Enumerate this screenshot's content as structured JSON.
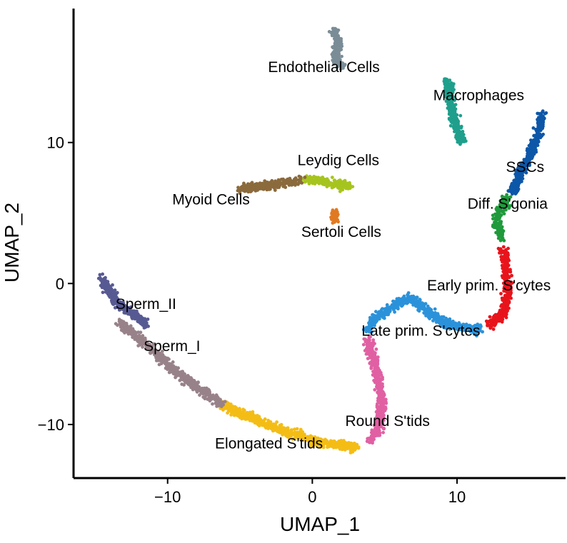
{
  "chart_data": {
    "type": "scatter",
    "xlabel": "UMAP_1",
    "ylabel": "UMAP_2",
    "xlim": [
      -16.5,
      17.5
    ],
    "ylim": [
      -13.8,
      19.5
    ],
    "xticks": [
      -10,
      0,
      10
    ],
    "yticks": [
      -10,
      0,
      10
    ],
    "xtick_labels": [
      "−10",
      "0",
      "10"
    ],
    "ytick_labels": [
      "−10",
      "0",
      "10"
    ],
    "grid": false,
    "legend": "none",
    "series": [
      {
        "name": "Endothelial Cells",
        "color": "#7a8d97",
        "path": [
          [
            1.5,
            18.0
          ],
          [
            1.8,
            17.0
          ],
          [
            1.6,
            16.0
          ],
          [
            2.0,
            15.5
          ]
        ],
        "label_pos": [
          0.8,
          15.0
        ]
      },
      {
        "name": "Macrophages",
        "color": "#1f9f8c",
        "path": [
          [
            9.3,
            14.5
          ],
          [
            9.6,
            12.5
          ],
          [
            10.0,
            11.0
          ],
          [
            10.4,
            10.0
          ]
        ],
        "label_pos": [
          11.5,
          13.0
        ]
      },
      {
        "name": "Leydig Cells",
        "color": "#a6c41e",
        "path": [
          [
            -0.5,
            7.4
          ],
          [
            0.6,
            7.3
          ],
          [
            1.6,
            7.0
          ],
          [
            2.6,
            6.9
          ]
        ],
        "label_pos": [
          1.8,
          8.4
        ]
      },
      {
        "name": "Myoid Cells",
        "color": "#8b6a3c",
        "path": [
          [
            -5.0,
            6.7
          ],
          [
            -3.5,
            6.9
          ],
          [
            -2.0,
            7.1
          ],
          [
            -0.8,
            7.3
          ]
        ],
        "label_pos": [
          -7.0,
          5.6
        ]
      },
      {
        "name": "Sertoli Cells",
        "color": "#e07a22",
        "path": [
          [
            1.5,
            5.0
          ],
          [
            1.6,
            4.5
          ]
        ],
        "label_pos": [
          2.0,
          3.3
        ]
      },
      {
        "name": "SSCs",
        "color": "#0d57a8",
        "path": [
          [
            15.9,
            12.0
          ],
          [
            15.6,
            10.5
          ],
          [
            15.0,
            9.0
          ],
          [
            14.2,
            7.5
          ],
          [
            13.8,
            6.3
          ]
        ],
        "label_pos": [
          14.7,
          7.9
        ]
      },
      {
        "name": "Diff. S'gonia",
        "color": "#1f9a3c",
        "path": [
          [
            13.5,
            6.0
          ],
          [
            12.8,
            5.0
          ],
          [
            12.8,
            4.0
          ],
          [
            13.1,
            3.2
          ]
        ],
        "label_pos": [
          13.5,
          5.3
        ]
      },
      {
        "name": "Early prim. S'cytes",
        "color": "#e8141b",
        "path": [
          [
            13.2,
            2.4
          ],
          [
            13.4,
            1.0
          ],
          [
            13.5,
            -0.7
          ],
          [
            13.2,
            -2.2
          ],
          [
            12.2,
            -3.0
          ]
        ],
        "label_pos": [
          12.2,
          -0.5
        ]
      },
      {
        "name": "Late prim. S'cytes",
        "color": "#2b92da",
        "path": [
          [
            11.5,
            -3.3
          ],
          [
            9.5,
            -3.0
          ],
          [
            8.0,
            -2.0
          ],
          [
            6.7,
            -1.0
          ],
          [
            5.5,
            -1.7
          ],
          [
            4.3,
            -2.5
          ],
          [
            3.8,
            -3.4
          ]
        ],
        "label_pos": [
          7.5,
          -3.7
        ]
      },
      {
        "name": "Round S'tids",
        "color": "#e060a3",
        "path": [
          [
            3.8,
            -4.0
          ],
          [
            4.4,
            -6.0
          ],
          [
            4.8,
            -8.5
          ],
          [
            4.6,
            -10.3
          ],
          [
            4.0,
            -11.2
          ]
        ],
        "label_pos": [
          5.2,
          -10.1
        ]
      },
      {
        "name": "Elongated S'tids",
        "color": "#f4bd16",
        "path": [
          [
            -6.5,
            -8.5
          ],
          [
            -4.5,
            -9.4
          ],
          [
            -2.0,
            -10.4
          ],
          [
            0.5,
            -11.3
          ],
          [
            3.0,
            -11.6
          ]
        ],
        "label_pos": [
          -3.0,
          -11.7
        ]
      },
      {
        "name": "Sperm_I",
        "color": "#988289",
        "path": [
          [
            -13.3,
            -2.8
          ],
          [
            -11.5,
            -4.3
          ],
          [
            -9.5,
            -6.2
          ],
          [
            -7.8,
            -7.5
          ],
          [
            -6.2,
            -8.6
          ]
        ],
        "label_pos": [
          -9.7,
          -4.8
        ]
      },
      {
        "name": "Sperm_II",
        "color": "#575a92",
        "path": [
          [
            -14.5,
            0.3
          ],
          [
            -14.0,
            -0.6
          ],
          [
            -13.4,
            -1.5
          ],
          [
            -12.3,
            -2.2
          ],
          [
            -11.5,
            -3.0
          ]
        ],
        "label_pos": [
          -11.5,
          -1.8
        ]
      }
    ]
  }
}
